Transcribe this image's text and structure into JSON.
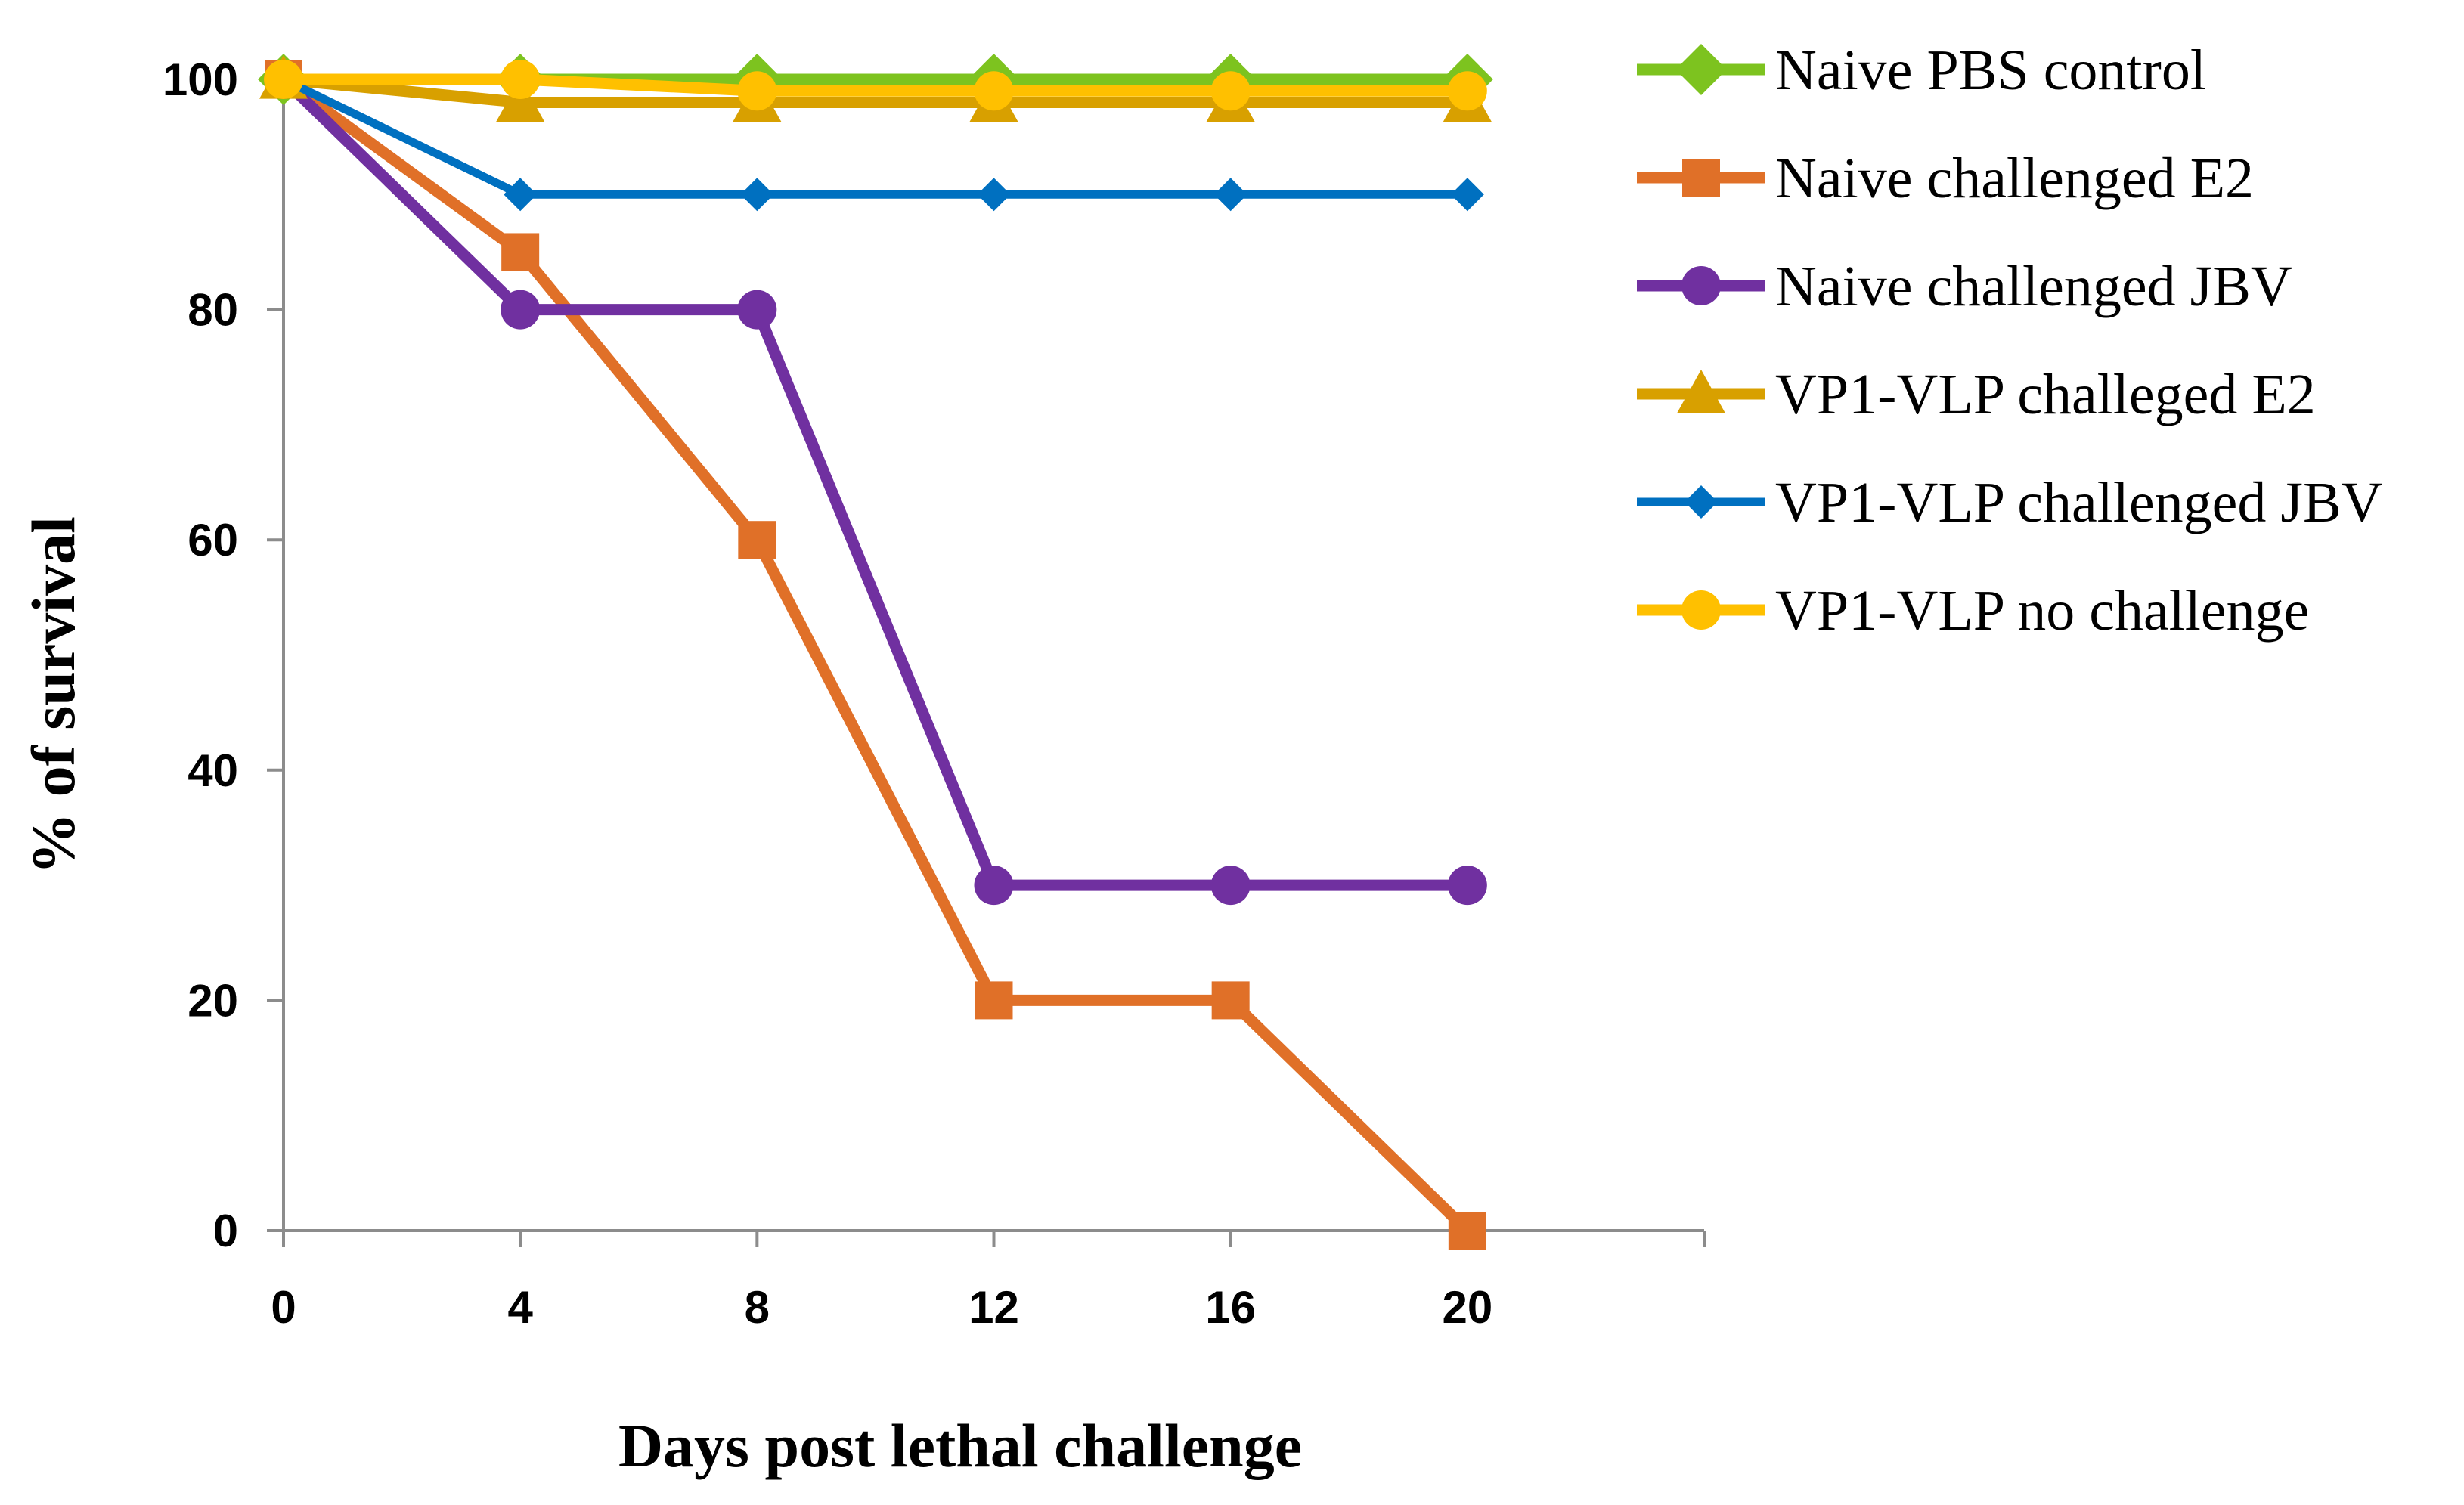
{
  "chart_data": {
    "type": "line",
    "title": "",
    "xlabel": "Days post lethal challenge",
    "ylabel": "% of survival",
    "x": [
      0,
      4,
      8,
      12,
      16,
      20
    ],
    "xlim": [
      0,
      24
    ],
    "ylim": [
      0,
      100
    ],
    "xticks": [
      "0",
      "4",
      "8",
      "12",
      "16",
      "20"
    ],
    "yticks": [
      "0",
      "20",
      "40",
      "60",
      "80",
      "100"
    ],
    "grid": false,
    "legend": "right",
    "series": [
      {
        "name": "Naive PBS control",
        "values": [
          100,
          100,
          100,
          100,
          100,
          100
        ],
        "color": "#7DC31F",
        "marker": "diamond"
      },
      {
        "name": "Naive challenged E2",
        "values": [
          100,
          85,
          60,
          20,
          20,
          0
        ],
        "color": "#E07028",
        "marker": "square"
      },
      {
        "name": "Naive challenged JBV",
        "values": [
          100,
          80,
          80,
          30,
          30,
          30
        ],
        "color": "#7030A0",
        "marker": "circle"
      },
      {
        "name": "VP1-VLP challeged E2",
        "values": [
          100,
          98,
          98,
          98,
          98,
          98
        ],
        "color": "#D8A000",
        "marker": "triangle"
      },
      {
        "name": "VP1-VLP challenged JBV",
        "values": [
          100,
          90,
          90,
          90,
          90,
          90
        ],
        "color": "#0070C0",
        "marker": "diamond-small"
      },
      {
        "name": "VP1-VLP no challenge",
        "values": [
          100,
          100,
          99,
          99,
          99,
          99
        ],
        "color": "#FFC000",
        "marker": "circle"
      }
    ]
  }
}
